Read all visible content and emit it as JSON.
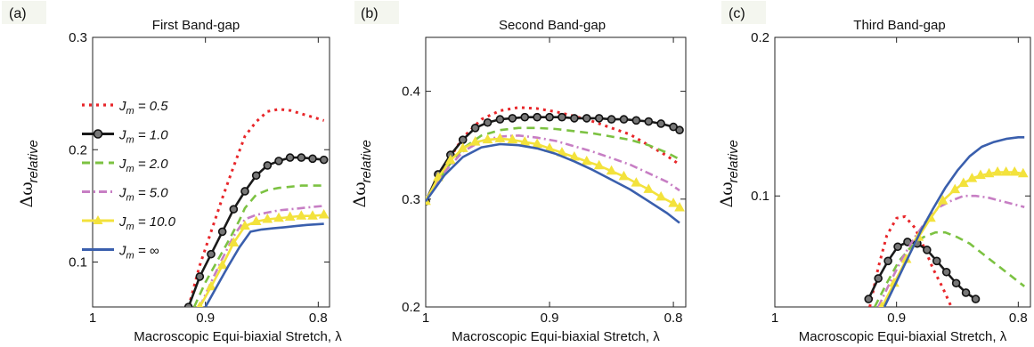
{
  "chart_data": [
    {
      "type": "line",
      "panel_label": "(a)",
      "title": "First Band-gap",
      "xlabel": "Macroscopic Equi-biaxial Stretch, λ",
      "ylabel_main": "Δω",
      "ylabel_sub": "relative",
      "xlim": [
        1.0,
        0.79
      ],
      "ylim": [
        0.06,
        0.3
      ],
      "xticks": [
        {
          "v": 1.0,
          "label": "1"
        },
        {
          "v": 0.9,
          "label": "0.9"
        },
        {
          "v": 0.8,
          "label": "0.8"
        }
      ],
      "yticks": [
        {
          "v": 0.1,
          "label": "0.1"
        },
        {
          "v": 0.2,
          "label": "0.2"
        },
        {
          "v": 0.3,
          "label": "0.3"
        }
      ],
      "legend": {
        "placement": "left"
      },
      "series": [
        {
          "name": "J_m = 0.5",
          "legend_main": "J",
          "legend_sub": "m",
          "legend_val": " = 0.5",
          "color": "#e8262a",
          "dash": "3,5",
          "marker": "none",
          "x": [
            0.915,
            0.905,
            0.895,
            0.885,
            0.875,
            0.865,
            0.855,
            0.845,
            0.835,
            0.825,
            0.815,
            0.805,
            0.795
          ],
          "y": [
            0.06,
            0.097,
            0.127,
            0.157,
            0.185,
            0.212,
            0.225,
            0.234,
            0.236,
            0.235,
            0.232,
            0.229,
            0.226
          ]
        },
        {
          "name": "J_m = 1.0",
          "legend_main": "J",
          "legend_sub": "m",
          "legend_val": " = 1.0",
          "color": "#1a1a1a",
          "dash": "",
          "marker": "circle",
          "x": [
            0.915,
            0.905,
            0.895,
            0.885,
            0.875,
            0.865,
            0.855,
            0.845,
            0.835,
            0.825,
            0.815,
            0.805,
            0.795
          ],
          "y": [
            0.06,
            0.087,
            0.107,
            0.127,
            0.147,
            0.163,
            0.177,
            0.186,
            0.19,
            0.193,
            0.193,
            0.192,
            0.191
          ]
        },
        {
          "name": "J_m = 2.0",
          "legend_main": "J",
          "legend_sub": "m",
          "legend_val": " = 2.0",
          "color": "#7cc242",
          "dash": "9,6",
          "marker": "none",
          "x": [
            0.91,
            0.9,
            0.89,
            0.88,
            0.87,
            0.865,
            0.855,
            0.845,
            0.835,
            0.825,
            0.815,
            0.805,
            0.795
          ],
          "y": [
            0.06,
            0.082,
            0.1,
            0.118,
            0.137,
            0.148,
            0.16,
            0.164,
            0.166,
            0.167,
            0.168,
            0.168,
            0.168
          ]
        },
        {
          "name": "J_m = 5.0",
          "legend_main": "J",
          "legend_sub": "m",
          "legend_val": " = 5.0",
          "color": "#c77ec4",
          "dash": "9,4,2,4",
          "marker": "none",
          "x": [
            0.905,
            0.895,
            0.885,
            0.875,
            0.865,
            0.855,
            0.845,
            0.835,
            0.825,
            0.815,
            0.805,
            0.795
          ],
          "y": [
            0.06,
            0.082,
            0.103,
            0.123,
            0.138,
            0.142,
            0.144,
            0.146,
            0.147,
            0.148,
            0.149,
            0.15
          ]
        },
        {
          "name": "J_m = 10.0",
          "legend_main": "J",
          "legend_sub": "m",
          "legend_val": " = 10.0",
          "color": "#f3e23c",
          "dash": "",
          "marker": "triangle",
          "x": [
            0.905,
            0.895,
            0.885,
            0.875,
            0.865,
            0.855,
            0.845,
            0.835,
            0.825,
            0.815,
            0.805,
            0.795
          ],
          "y": [
            0.06,
            0.078,
            0.097,
            0.117,
            0.132,
            0.136,
            0.138,
            0.139,
            0.14,
            0.141,
            0.141,
            0.142
          ]
        },
        {
          "name": "J_m = ∞",
          "legend_main": "J",
          "legend_sub": "m",
          "legend_val": " = ∞",
          "color": "#3a5fad",
          "dash": "",
          "marker": "none",
          "x": [
            0.9,
            0.89,
            0.88,
            0.87,
            0.86,
            0.85,
            0.84,
            0.83,
            0.82,
            0.81,
            0.795
          ],
          "y": [
            0.06,
            0.078,
            0.096,
            0.113,
            0.127,
            0.129,
            0.13,
            0.131,
            0.132,
            0.133,
            0.134
          ]
        }
      ]
    },
    {
      "type": "line",
      "panel_label": "(b)",
      "title": "Second Band-gap",
      "xlabel": "Macroscopic Equi-biaxial Stretch, λ",
      "ylabel_main": "Δω",
      "ylabel_sub": "relative",
      "xlim": [
        1.0,
        0.79
      ],
      "ylim": [
        0.2,
        0.45
      ],
      "xticks": [
        {
          "v": 1.0,
          "label": "1"
        },
        {
          "v": 0.9,
          "label": "0.9"
        },
        {
          "v": 0.8,
          "label": "0.8"
        }
      ],
      "yticks": [
        {
          "v": 0.2,
          "label": "0.2"
        },
        {
          "v": 0.3,
          "label": "0.3"
        },
        {
          "v": 0.4,
          "label": "0.4"
        }
      ],
      "series": [
        {
          "name": "J_m = 0.5",
          "color": "#e8262a",
          "dash": "3,5",
          "marker": "none",
          "x": [
            1.0,
            0.985,
            0.97,
            0.955,
            0.94,
            0.925,
            0.91,
            0.895,
            0.88,
            0.865,
            0.85,
            0.835,
            0.82,
            0.805,
            0.795
          ],
          "y": [
            0.298,
            0.33,
            0.357,
            0.374,
            0.382,
            0.385,
            0.384,
            0.381,
            0.377,
            0.372,
            0.366,
            0.36,
            0.35,
            0.34,
            0.332
          ]
        },
        {
          "name": "J_m = 1.0",
          "color": "#1a1a1a",
          "dash": "",
          "marker": "circle",
          "x": [
            1.0,
            0.99,
            0.98,
            0.97,
            0.96,
            0.95,
            0.94,
            0.93,
            0.92,
            0.91,
            0.9,
            0.89,
            0.88,
            0.87,
            0.86,
            0.85,
            0.84,
            0.83,
            0.82,
            0.81,
            0.8,
            0.795
          ],
          "y": [
            0.298,
            0.323,
            0.341,
            0.355,
            0.366,
            0.371,
            0.374,
            0.375,
            0.376,
            0.376,
            0.376,
            0.376,
            0.375,
            0.375,
            0.375,
            0.374,
            0.374,
            0.373,
            0.372,
            0.37,
            0.367,
            0.364
          ]
        },
        {
          "name": "J_m = 2.0",
          "color": "#7cc242",
          "dash": "9,6",
          "marker": "none",
          "x": [
            1.0,
            0.985,
            0.97,
            0.955,
            0.94,
            0.925,
            0.91,
            0.895,
            0.88,
            0.865,
            0.85,
            0.835,
            0.82,
            0.805,
            0.795
          ],
          "y": [
            0.298,
            0.326,
            0.347,
            0.359,
            0.364,
            0.366,
            0.366,
            0.365,
            0.363,
            0.361,
            0.358,
            0.355,
            0.35,
            0.343,
            0.337
          ]
        },
        {
          "name": "J_m = 5.0",
          "color": "#c77ec4",
          "dash": "9,4,2,4",
          "marker": "none",
          "x": [
            1.0,
            0.985,
            0.97,
            0.955,
            0.94,
            0.925,
            0.91,
            0.895,
            0.88,
            0.865,
            0.85,
            0.835,
            0.82,
            0.805,
            0.795
          ],
          "y": [
            0.298,
            0.325,
            0.344,
            0.354,
            0.358,
            0.359,
            0.357,
            0.354,
            0.349,
            0.344,
            0.338,
            0.332,
            0.324,
            0.316,
            0.308
          ]
        },
        {
          "name": "J_m = 10.0",
          "color": "#f3e23c",
          "dash": "",
          "marker": "triangle",
          "x": [
            1.0,
            0.99,
            0.98,
            0.97,
            0.96,
            0.95,
            0.94,
            0.93,
            0.92,
            0.91,
            0.9,
            0.89,
            0.88,
            0.87,
            0.86,
            0.85,
            0.84,
            0.83,
            0.82,
            0.81,
            0.8,
            0.795
          ],
          "y": [
            0.298,
            0.32,
            0.336,
            0.347,
            0.353,
            0.355,
            0.356,
            0.355,
            0.353,
            0.351,
            0.347,
            0.343,
            0.339,
            0.335,
            0.331,
            0.326,
            0.321,
            0.315,
            0.309,
            0.302,
            0.296,
            0.292
          ]
        },
        {
          "name": "J_m = ∞",
          "color": "#3a5fad",
          "dash": "",
          "marker": "none",
          "x": [
            1.0,
            0.985,
            0.97,
            0.955,
            0.94,
            0.925,
            0.91,
            0.895,
            0.88,
            0.865,
            0.85,
            0.835,
            0.82,
            0.805,
            0.795
          ],
          "y": [
            0.298,
            0.322,
            0.339,
            0.348,
            0.351,
            0.35,
            0.347,
            0.342,
            0.335,
            0.327,
            0.318,
            0.309,
            0.298,
            0.287,
            0.278
          ]
        }
      ]
    },
    {
      "type": "line",
      "panel_label": "(c)",
      "title": "Third Band-gap",
      "xlabel": "Macroscopic Equi-biaxial Stretch, λ",
      "ylabel_main": "Δω",
      "ylabel_sub": "relative",
      "xlim": [
        1.0,
        0.79
      ],
      "ylim": [
        0.03,
        0.2
      ],
      "xticks": [
        {
          "v": 1.0,
          "label": "1"
        },
        {
          "v": 0.9,
          "label": "0.9"
        },
        {
          "v": 0.8,
          "label": "0.8"
        }
      ],
      "yticks": [
        {
          "v": 0.1,
          "label": "0.1"
        },
        {
          "v": 0.2,
          "label": "0.2"
        }
      ],
      "series": [
        {
          "name": "J_m = 0.5",
          "color": "#e8262a",
          "dash": "3,5",
          "marker": "none",
          "x": [
            0.922,
            0.915,
            0.908,
            0.9,
            0.893,
            0.885,
            0.877,
            0.87,
            0.862,
            0.855
          ],
          "y": [
            0.03,
            0.055,
            0.075,
            0.086,
            0.087,
            0.08,
            0.067,
            0.054,
            0.042,
            0.03
          ]
        },
        {
          "name": "J_m = 1.0",
          "color": "#1a1a1a",
          "dash": "",
          "marker": "circle",
          "x": [
            0.923,
            0.915,
            0.907,
            0.899,
            0.891,
            0.883,
            0.875,
            0.867,
            0.859,
            0.851,
            0.843,
            0.835
          ],
          "y": [
            0.035,
            0.048,
            0.059,
            0.068,
            0.071,
            0.07,
            0.066,
            0.059,
            0.052,
            0.045,
            0.039,
            0.035
          ]
        },
        {
          "name": "J_m = 2.0",
          "color": "#7cc242",
          "dash": "9,6",
          "marker": "none",
          "x": [
            0.918,
            0.908,
            0.898,
            0.888,
            0.878,
            0.868,
            0.86,
            0.85,
            0.84,
            0.83,
            0.82,
            0.81,
            0.8,
            0.795
          ],
          "y": [
            0.03,
            0.045,
            0.059,
            0.068,
            0.074,
            0.077,
            0.077,
            0.074,
            0.07,
            0.064,
            0.058,
            0.052,
            0.046,
            0.043
          ]
        },
        {
          "name": "J_m = 5.0",
          "color": "#c77ec4",
          "dash": "9,4,2,4",
          "marker": "none",
          "x": [
            0.915,
            0.905,
            0.895,
            0.885,
            0.875,
            0.865,
            0.855,
            0.845,
            0.835,
            0.825,
            0.815,
            0.805,
            0.795
          ],
          "y": [
            0.03,
            0.046,
            0.061,
            0.074,
            0.085,
            0.093,
            0.097,
            0.1,
            0.1,
            0.099,
            0.097,
            0.095,
            0.093
          ]
        },
        {
          "name": "J_m = 10.0",
          "color": "#f3e23c",
          "dash": "",
          "marker": "triangle",
          "x": [
            0.912,
            0.902,
            0.892,
            0.882,
            0.872,
            0.862,
            0.852,
            0.845,
            0.838,
            0.831,
            0.824,
            0.817,
            0.81,
            0.803,
            0.796
          ],
          "y": [
            0.03,
            0.045,
            0.06,
            0.074,
            0.086,
            0.097,
            0.104,
            0.108,
            0.111,
            0.113,
            0.114,
            0.115,
            0.115,
            0.115,
            0.114
          ]
        },
        {
          "name": "J_m = ∞",
          "color": "#3a5fad",
          "dash": "",
          "marker": "none",
          "x": [
            0.91,
            0.9,
            0.89,
            0.88,
            0.87,
            0.86,
            0.85,
            0.84,
            0.83,
            0.82,
            0.81,
            0.8,
            0.795
          ],
          "y": [
            0.03,
            0.046,
            0.062,
            0.078,
            0.092,
            0.105,
            0.116,
            0.125,
            0.131,
            0.134,
            0.136,
            0.137,
            0.137
          ]
        }
      ]
    }
  ]
}
